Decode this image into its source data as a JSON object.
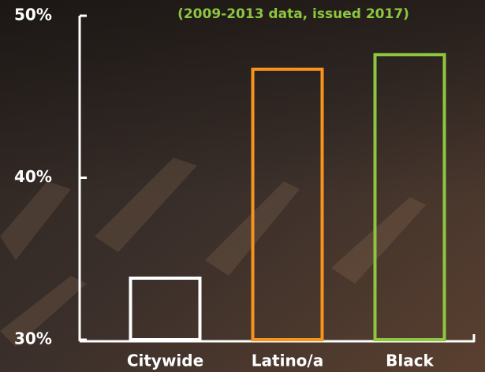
{
  "chart_data": {
    "type": "bar",
    "subtitle": "(2009-2013 data, issued 2017)",
    "categories": [
      "Citywide",
      "Latino/a",
      "Black"
    ],
    "values": [
      33.8,
      46.7,
      47.6
    ],
    "colors": [
      "#ffffff",
      "#f7941d",
      "#8dc63f"
    ],
    "ylim": [
      30,
      50
    ],
    "yticks": [
      {
        "value": 30,
        "label": "30%"
      },
      {
        "value": 40,
        "label": "40%"
      },
      {
        "value": 50,
        "label": "50%"
      }
    ]
  }
}
